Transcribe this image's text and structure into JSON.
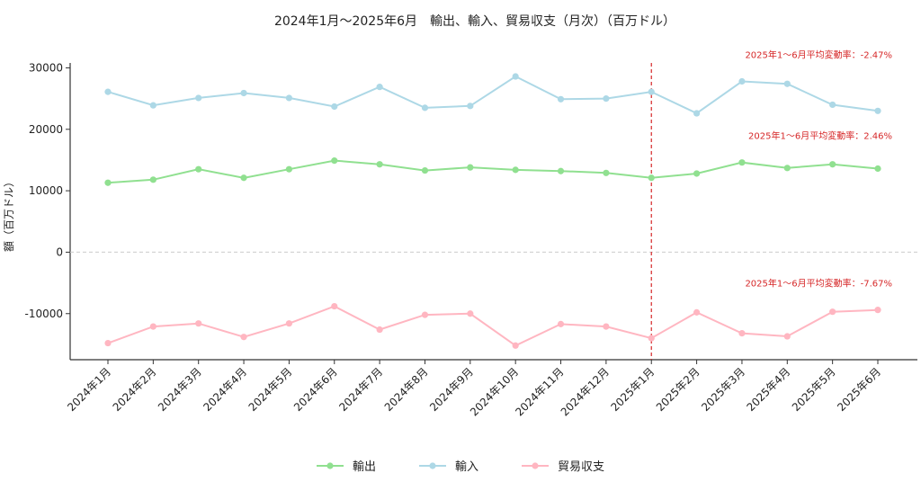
{
  "chart_data": {
    "type": "line",
    "title": "2024年1月〜2025年6月　輸出、輸入、貿易収支（月次）（百万ドル）",
    "xlabel": "",
    "ylabel": "額（百万ドル）",
    "ylim": [
      -17500,
      30800
    ],
    "yticks": [
      -10000,
      0,
      10000,
      20000,
      30000
    ],
    "categories": [
      "2024年1月",
      "2024年2月",
      "2024年3月",
      "2024年4月",
      "2024年5月",
      "2024年6月",
      "2024年7月",
      "2024年8月",
      "2024年9月",
      "2024年10月",
      "2024年11月",
      "2024年12月",
      "2025年1月",
      "2025年2月",
      "2025年3月",
      "2025年4月",
      "2025年5月",
      "2025年6月"
    ],
    "series": [
      {
        "name": "輸出",
        "color": "#90e090",
        "values": [
          11300,
          11800,
          13500,
          12100,
          13500,
          14900,
          14300,
          13300,
          13800,
          13400,
          13200,
          12900,
          12100,
          12800,
          14600,
          13700,
          14300,
          13600
        ]
      },
      {
        "name": "輸入",
        "color": "#add8e6",
        "values": [
          26100,
          23900,
          25100,
          25900,
          25100,
          23700,
          26900,
          23500,
          23800,
          28600,
          24900,
          25000,
          26100,
          22600,
          27800,
          27400,
          24000,
          23000
        ]
      },
      {
        "name": "貿易収支",
        "color": "#ffb6c1",
        "values": [
          -14800,
          -12100,
          -11600,
          -13800,
          -11600,
          -8800,
          -12600,
          -10200,
          -10000,
          -15200,
          -11700,
          -12100,
          -14000,
          -9800,
          -13200,
          -13700,
          -9700,
          -9400
        ]
      }
    ],
    "reference_line": {
      "category": "2025年1月",
      "color": "#d62728",
      "style": "dashed"
    },
    "zero_line": {
      "value": 0,
      "style": "dashed",
      "color": "#cccccc"
    },
    "annotations": [
      {
        "text": "2025年1〜6月平均変動率：-2.47%",
        "series": "輸入"
      },
      {
        "text": "2025年1〜6月平均変動率：2.46%",
        "series": "輸出"
      },
      {
        "text": "2025年1〜6月平均変動率：-7.67%",
        "series": "貿易収支"
      }
    ],
    "legend_position": "bottom-center",
    "grid": false
  }
}
